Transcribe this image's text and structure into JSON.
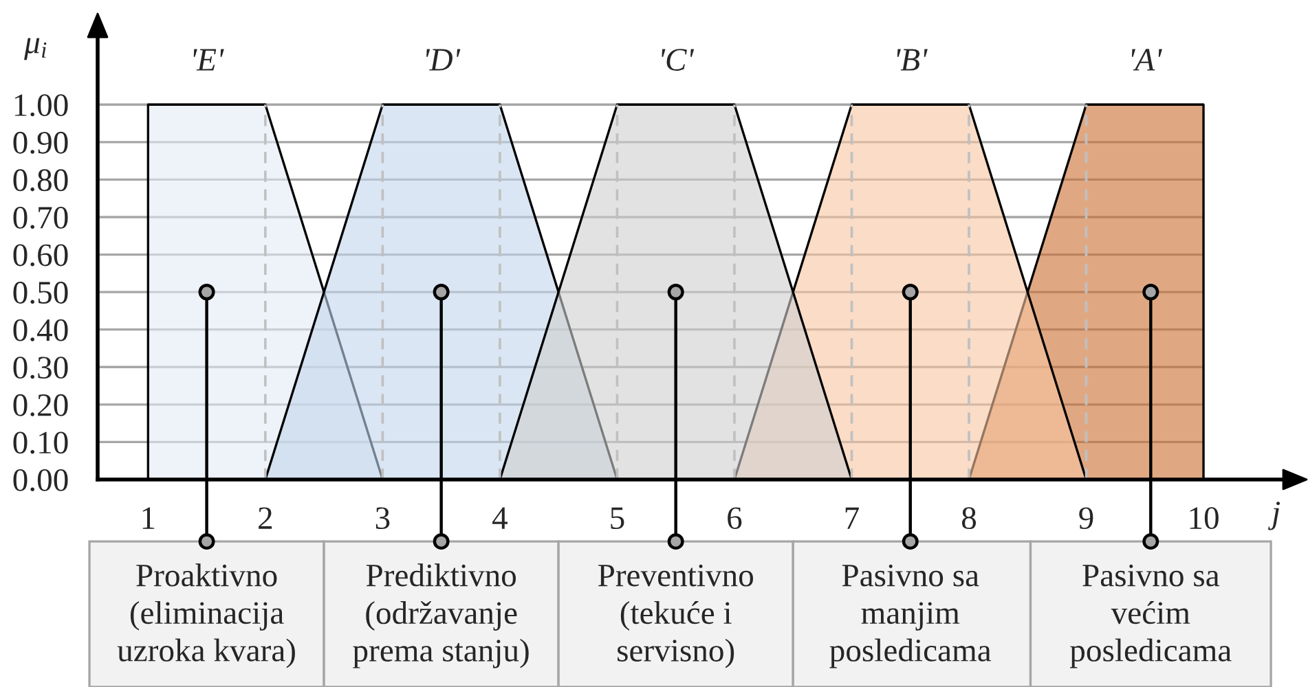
{
  "chart_data": {
    "type": "area",
    "xlabel": "j",
    "ylabel": "μ$_{i}$",
    "xlim": [
      0.57,
      10.68
    ],
    "ylim": [
      0,
      1.18
    ],
    "xticks": [
      1,
      2,
      3,
      4,
      5,
      6,
      7,
      8,
      9,
      10
    ],
    "yticks": [
      {
        "value": 0,
        "label": "0.00"
      },
      {
        "value": 0.1,
        "label": "0.10"
      },
      {
        "value": 0.2,
        "label": "0.20"
      },
      {
        "value": 0.3,
        "label": "0.30"
      },
      {
        "value": 0.4,
        "label": "0.40"
      },
      {
        "value": 0.5,
        "label": "0.50"
      },
      {
        "value": 0.6,
        "label": "0.60"
      },
      {
        "value": 0.7,
        "label": "0.70"
      },
      {
        "value": 0.8,
        "label": "0.80"
      },
      {
        "value": 0.9,
        "label": "0.90"
      },
      {
        "value": 1,
        "label": "1.00"
      }
    ],
    "grid": "y",
    "series": [
      {
        "name": "'E'",
        "color": "#eef2f9",
        "x": [
          1,
          1,
          2,
          3
        ],
        "values": [
          0,
          1,
          1,
          0
        ]
      },
      {
        "name": "'D'",
        "color": "#dae6f3",
        "x": [
          2,
          3,
          4,
          5
        ],
        "values": [
          0,
          1,
          1,
          0
        ]
      },
      {
        "name": "'A'",
        "color": "#e0a882",
        "x": [
          8,
          9,
          10,
          10
        ],
        "values": [
          0,
          1,
          1,
          0
        ]
      },
      {
        "name": "'B'",
        "color": "#fadcc7",
        "x": [
          6,
          7,
          8,
          9
        ],
        "values": [
          0,
          1,
          1,
          0
        ]
      },
      {
        "name": "'C'",
        "color": "#e2e2e2",
        "x": [
          4,
          5,
          6,
          7
        ],
        "values": [
          0,
          1,
          1,
          0
        ]
      },
      {
        "type": "scatter",
        "color": "#a6a6a6",
        "marker": "circle",
        "x": [
          1.5,
          3.5,
          5.5,
          7.5,
          9.55
        ],
        "values": [
          0.5,
          0.5,
          0.5,
          0.5,
          0.5
        ]
      }
    ],
    "ref_lines": [
      {
        "axis": "x",
        "value": 2,
        "color": "#c0c0c0",
        "line_style": "dashed"
      },
      {
        "axis": "x",
        "value": 3,
        "color": "#c0c0c0",
        "line_style": "dashed"
      },
      {
        "axis": "x",
        "value": 4,
        "color": "#c0c0c0",
        "line_style": "dashed"
      },
      {
        "axis": "x",
        "value": 5,
        "color": "#c0c0c0",
        "line_style": "dashed"
      },
      {
        "axis": "x",
        "value": 6,
        "color": "#c0c0c0",
        "line_style": "dashed"
      },
      {
        "axis": "x",
        "value": 7,
        "color": "#c0c0c0",
        "line_style": "dashed"
      },
      {
        "axis": "x",
        "value": 8,
        "color": "#c0c0c0",
        "line_style": "dashed"
      },
      {
        "axis": "x",
        "value": 9,
        "color": "#c0c0c0",
        "line_style": "dashed"
      }
    ],
    "annotations": [
      {
        "text": "Proaktivno\n(eliminacija\nuzroka kvara)",
        "x": 1.5,
        "y": 0.5
      },
      {
        "text": "Prediktivno\n(održavanje\nprema stanju)",
        "x": 3.5,
        "y": 0.5
      },
      {
        "text": "Preventivno\n(tekuće i\nservisno)",
        "x": 5.5,
        "y": 0.5
      },
      {
        "text": "Pasivno sa\nmanjim\nposledicama",
        "x": 7.5,
        "y": 0.5
      },
      {
        "text": "Pasivno sa\nvećim\nposledicama",
        "x": 9.55,
        "y": 0.5
      }
    ]
  }
}
